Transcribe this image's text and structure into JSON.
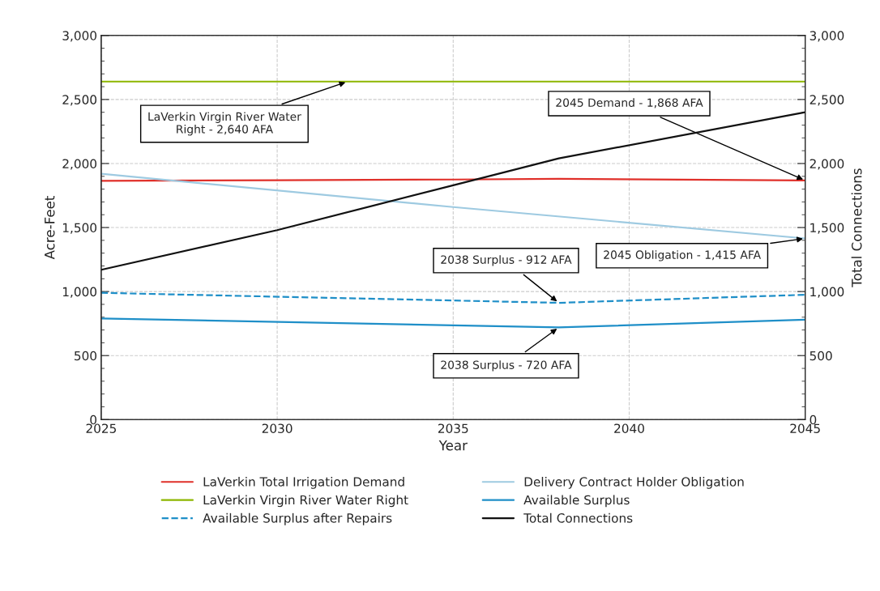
{
  "chart_data": {
    "type": "line",
    "xlabel": "Year",
    "ylabel": "Acre-Feet",
    "y2label": "Total Connections",
    "xlim": [
      2025,
      2045
    ],
    "xticks": [
      2025,
      2030,
      2035,
      2040,
      2045
    ],
    "ylim": [
      0,
      3000
    ],
    "yticks": [
      0,
      500,
      {
        "value": 1000,
        "label": "1,000"
      },
      {
        "value": 1500,
        "label": "1,500"
      },
      {
        "value": 2000,
        "label": "2,000"
      },
      {
        "value": 2500,
        "label": "2,500"
      },
      {
        "value": 3000,
        "label": "3,000"
      }
    ],
    "y2lim": [
      0,
      3000
    ],
    "y2ticks": [
      0,
      500,
      {
        "value": 1000,
        "label": "1,000"
      },
      {
        "value": 1500,
        "label": "1,500"
      },
      {
        "value": 2000,
        "label": "2,000"
      },
      {
        "value": 2500,
        "label": "2,500"
      },
      {
        "value": 3000,
        "label": "3,000"
      }
    ],
    "grid": true,
    "legend": "bottom",
    "marker": "none",
    "series": [
      {
        "name": "LaVerkin Total Irrigation Demand",
        "color": "#e0302a",
        "x": [
          2025,
          2030,
          2035,
          2038,
          2045
        ],
        "values": [
          1865,
          1870,
          1875,
          1880,
          1868
        ]
      },
      {
        "name": "LaVerkin Virgin River Water Right",
        "color": "#8db600",
        "x": [
          2025,
          2045
        ],
        "values": [
          2640,
          2640
        ]
      },
      {
        "name": "Available Surplus after Repairs",
        "color": "#1f8fc8",
        "line_style": "dashed",
        "x": [
          2025,
          2038,
          2045
        ],
        "values": [
          990,
          912,
          975
        ]
      },
      {
        "name": "Delivery Contract Holder Obligation",
        "color": "#9ecae1",
        "x": [
          2025,
          2035,
          2045
        ],
        "values": [
          1920,
          1660,
          1415
        ]
      },
      {
        "name": "Available Surplus",
        "color": "#1f8fc8",
        "x": [
          2025,
          2038,
          2045
        ],
        "values": [
          790,
          720,
          780
        ]
      },
      {
        "name": "Total Connections",
        "color": "#111111",
        "axis": "y2",
        "x": [
          2025,
          2030,
          2035,
          2038,
          2045
        ],
        "values": [
          1170,
          1480,
          1830,
          2040,
          2400
        ]
      }
    ],
    "annotations": [
      {
        "text": "LaVerkin Virgin River Water\nRight - 2,640 AFA",
        "x": 2032,
        "y": 2640
      },
      {
        "text": "2045 Demand - 1,868 AFA",
        "x": 2045,
        "y": 1868
      },
      {
        "text": "2038 Surplus - 912 AFA",
        "x": 2038,
        "y": 912
      },
      {
        "text": "2045 Obligation - 1,415 AFA",
        "x": 2045,
        "y": 1415
      },
      {
        "text": "2038 Surplus - 720 AFA",
        "x": 2038,
        "y": 720
      }
    ]
  }
}
